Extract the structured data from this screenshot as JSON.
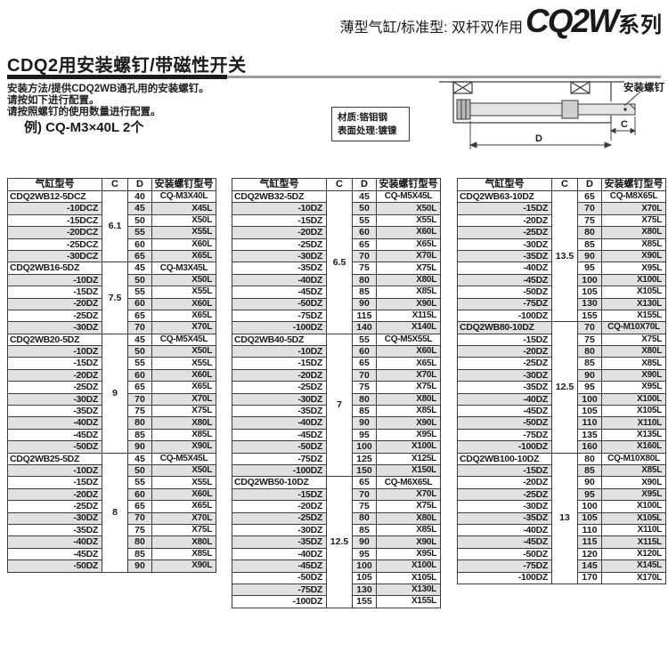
{
  "page_header": {
    "prefix": "薄型气缸/标准型: 双杆双作用",
    "series": "CQ2W",
    "suffix": "系列"
  },
  "section": {
    "title": "CDQ2用安装螺钉/带磁性开关",
    "desc_line1": "安装方法/提供CDQ2WB通孔用的安装螺钉。",
    "desc_line2": "请按如下进行配置。",
    "desc_line3": "请按照螺钉的使用数量进行配置。",
    "example": "例) CQ-M3×40L 2个"
  },
  "material_note": {
    "line1": "材质:铬钼钢",
    "line2": "表面处理:镀镍"
  },
  "diagram": {
    "screw_label": "安装螺钉",
    "dim_d": "D",
    "dim_c": "C"
  },
  "table_headers": {
    "model": "气缸型号",
    "c": "C",
    "d": "D",
    "screw": "安装螺钉型号"
  },
  "colors": {
    "stripe": "#e1e1e1",
    "border": "#3c3c3c",
    "rule_black": "#1c1c1c",
    "rule_gray": "#9c9c9c"
  },
  "tables": [
    {
      "groups": [
        {
          "c": "6.1",
          "rows": [
            [
              "CDQ2WB12-5DCZ",
              "40",
              "CQ-M3X40L"
            ],
            [
              "-10DCZ",
              "45",
              "X45L"
            ],
            [
              "-15DCZ",
              "50",
              "X50L"
            ],
            [
              "-20DCZ",
              "55",
              "X55L"
            ],
            [
              "-25DCZ",
              "60",
              "X60L"
            ],
            [
              "-30DCZ",
              "65",
              "X65L"
            ]
          ]
        },
        {
          "c": "7.5",
          "rows": [
            [
              "CDQ2WB16-5DZ",
              "45",
              "CQ-M3X45L"
            ],
            [
              "-10DZ",
              "50",
              "X50L"
            ],
            [
              "-15DZ",
              "55",
              "X55L"
            ],
            [
              "-20DZ",
              "60",
              "X60L"
            ],
            [
              "-25DZ",
              "65",
              "X65L"
            ],
            [
              "-30DZ",
              "70",
              "X70L"
            ]
          ]
        },
        {
          "c": "9",
          "rows": [
            [
              "CDQ2WB20-5DZ",
              "45",
              "CQ-M5X45L"
            ],
            [
              "-10DZ",
              "50",
              "X50L"
            ],
            [
              "-15DZ",
              "55",
              "X55L"
            ],
            [
              "-20DZ",
              "60",
              "X60L"
            ],
            [
              "-25DZ",
              "65",
              "X65L"
            ],
            [
              "-30DZ",
              "70",
              "X70L"
            ],
            [
              "-35DZ",
              "75",
              "X75L"
            ],
            [
              "-40DZ",
              "80",
              "X80L"
            ],
            [
              "-45DZ",
              "85",
              "X85L"
            ],
            [
              "-50DZ",
              "90",
              "X90L"
            ]
          ]
        },
        {
          "c": "8",
          "rows": [
            [
              "CDQ2WB25-5DZ",
              "45",
              "CQ-M5X45L"
            ],
            [
              "-10DZ",
              "50",
              "X50L"
            ],
            [
              "-15DZ",
              "55",
              "X55L"
            ],
            [
              "-20DZ",
              "60",
              "X60L"
            ],
            [
              "-25DZ",
              "65",
              "X65L"
            ],
            [
              "-30DZ",
              "70",
              "X70L"
            ],
            [
              "-35DZ",
              "75",
              "X75L"
            ],
            [
              "-40DZ",
              "80",
              "X80L"
            ],
            [
              "-45DZ",
              "85",
              "X85L"
            ],
            [
              "-50DZ",
              "90",
              "X90L"
            ]
          ]
        }
      ]
    },
    {
      "groups": [
        {
          "c": "6.5",
          "rows": [
            [
              "CDQ2WB32-5DZ",
              "45",
              "CQ-M5X45L"
            ],
            [
              "-10DZ",
              "50",
              "X50L"
            ],
            [
              "-15DZ",
              "55",
              "X55L"
            ],
            [
              "-20DZ",
              "60",
              "X60L"
            ],
            [
              "-25DZ",
              "65",
              "X65L"
            ],
            [
              "-30DZ",
              "70",
              "X70L"
            ],
            [
              "-35DZ",
              "75",
              "X75L"
            ],
            [
              "-40DZ",
              "80",
              "X80L"
            ],
            [
              "-45DZ",
              "85",
              "X85L"
            ],
            [
              "-50DZ",
              "90",
              "X90L"
            ],
            [
              "-75DZ",
              "115",
              "X115L"
            ],
            [
              "-100DZ",
              "140",
              "X140L"
            ]
          ]
        },
        {
          "c": "7",
          "rows": [
            [
              "CDQ2WB40-5DZ",
              "55",
              "CQ-M5X55L"
            ],
            [
              "-10DZ",
              "60",
              "X60L"
            ],
            [
              "-15DZ",
              "65",
              "X65L"
            ],
            [
              "-20DZ",
              "70",
              "X70L"
            ],
            [
              "-25DZ",
              "75",
              "X75L"
            ],
            [
              "-30DZ",
              "80",
              "X80L"
            ],
            [
              "-35DZ",
              "85",
              "X85L"
            ],
            [
              "-40DZ",
              "90",
              "X90L"
            ],
            [
              "-45DZ",
              "95",
              "X95L"
            ],
            [
              "-50DZ",
              "100",
              "X100L"
            ],
            [
              "-75DZ",
              "125",
              "X125L"
            ],
            [
              "-100DZ",
              "150",
              "X150L"
            ]
          ]
        },
        {
          "c": "12.5",
          "rows": [
            [
              "CDQ2WB50-10DZ",
              "65",
              "CQ-M6X65L"
            ],
            [
              "-15DZ",
              "70",
              "X70L"
            ],
            [
              "-20DZ",
              "75",
              "X75L"
            ],
            [
              "-25DZ",
              "80",
              "X80L"
            ],
            [
              "-30DZ",
              "85",
              "X85L"
            ],
            [
              "-35DZ",
              "90",
              "X90L"
            ],
            [
              "-40DZ",
              "95",
              "X95L"
            ],
            [
              "-45DZ",
              "100",
              "X100L"
            ],
            [
              "-50DZ",
              "105",
              "X105L"
            ],
            [
              "-75DZ",
              "130",
              "X130L"
            ],
            [
              "-100DZ",
              "155",
              "X155L"
            ]
          ]
        }
      ]
    },
    {
      "groups": [
        {
          "c": "13.5",
          "rows": [
            [
              "CDQ2WB63-10DZ",
              "65",
              "CQ-M8X65L"
            ],
            [
              "-15DZ",
              "70",
              "X70L"
            ],
            [
              "-20DZ",
              "75",
              "X75L"
            ],
            [
              "-25DZ",
              "80",
              "X80L"
            ],
            [
              "-30DZ",
              "85",
              "X85L"
            ],
            [
              "-35DZ",
              "90",
              "X90L"
            ],
            [
              "-40DZ",
              "95",
              "X95L"
            ],
            [
              "-45DZ",
              "100",
              "X100L"
            ],
            [
              "-50DZ",
              "105",
              "X105L"
            ],
            [
              "-75DZ",
              "130",
              "X130L"
            ],
            [
              "-100DZ",
              "155",
              "X155L"
            ]
          ]
        },
        {
          "c": "12.5",
          "rows": [
            [
              "CDQ2WB80-10DZ",
              "70",
              "CQ-M10X70L"
            ],
            [
              "-15DZ",
              "75",
              "X75L"
            ],
            [
              "-20DZ",
              "80",
              "X80L"
            ],
            [
              "-25DZ",
              "85",
              "X85L"
            ],
            [
              "-30DZ",
              "90",
              "X90L"
            ],
            [
              "-35DZ",
              "95",
              "X95L"
            ],
            [
              "-40DZ",
              "100",
              "X100L"
            ],
            [
              "-45DZ",
              "105",
              "X105L"
            ],
            [
              "-50DZ",
              "110",
              "X110L"
            ],
            [
              "-75DZ",
              "135",
              "X135L"
            ],
            [
              "-100DZ",
              "160",
              "X160L"
            ]
          ]
        },
        {
          "c": "13",
          "rows": [
            [
              "CDQ2WB100-10DZ",
              "80",
              "CQ-M10X80L"
            ],
            [
              "-15DZ",
              "85",
              "X85L"
            ],
            [
              "-20DZ",
              "90",
              "X90L"
            ],
            [
              "-25DZ",
              "95",
              "X95L"
            ],
            [
              "-30DZ",
              "100",
              "X100L"
            ],
            [
              "-35DZ",
              "105",
              "X105L"
            ],
            [
              "-40DZ",
              "110",
              "X110L"
            ],
            [
              "-45DZ",
              "115",
              "X115L"
            ],
            [
              "-50DZ",
              "120",
              "X120L"
            ],
            [
              "-75DZ",
              "145",
              "X145L"
            ],
            [
              "-100DZ",
              "170",
              "X170L"
            ]
          ]
        }
      ]
    }
  ]
}
